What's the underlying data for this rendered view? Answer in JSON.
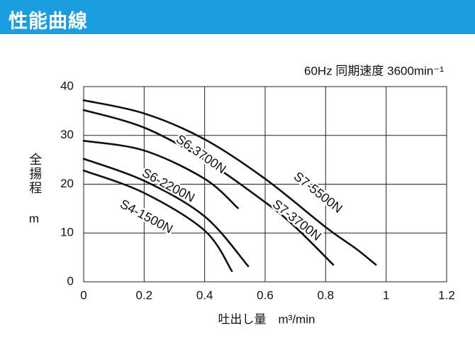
{
  "header": {
    "title": "性能曲線"
  },
  "chart_data": {
    "type": "line",
    "subtitle": "60Hz 同期速度 3600min⁻¹",
    "x_label": "吐出し量　m³/min",
    "y_label": "全揚程",
    "y_unit": "m",
    "xlim": [
      0,
      1.2
    ],
    "xticks": [
      0,
      0.2,
      0.4,
      0.6,
      0.8,
      1,
      1.2
    ],
    "ylim": [
      0,
      40
    ],
    "yticks": [
      0,
      10,
      20,
      30,
      40
    ],
    "grid": true,
    "series": [
      {
        "name": "S7-5500N",
        "color": "#111111",
        "x": [
          0,
          0.2,
          0.4,
          0.6,
          0.8,
          0.9,
          0.966
        ],
        "values": [
          37.2,
          34.5,
          29.2,
          21.1,
          11.2,
          6.8,
          3.5
        ]
      },
      {
        "name": "S7-3700N",
        "color": "#111111",
        "x": [
          0,
          0.2,
          0.4,
          0.6,
          0.7,
          0.825
        ],
        "values": [
          35.2,
          31.6,
          25,
          16.3,
          11.2,
          3.5
        ]
      },
      {
        "name": "S6-3700N",
        "color": "#111111",
        "x": [
          0,
          0.2,
          0.4,
          0.51
        ],
        "values": [
          28.9,
          26.9,
          21.1,
          15.1
        ]
      },
      {
        "name": "S6-2200N",
        "color": "#111111",
        "x": [
          0,
          0.2,
          0.4,
          0.544
        ],
        "values": [
          25.2,
          20.7,
          13.4,
          3.2
        ]
      },
      {
        "name": "S4-1500N",
        "color": "#111111",
        "x": [
          0,
          0.2,
          0.4,
          0.49
        ],
        "values": [
          22.8,
          18.2,
          10.5,
          2.2
        ]
      }
    ]
  }
}
